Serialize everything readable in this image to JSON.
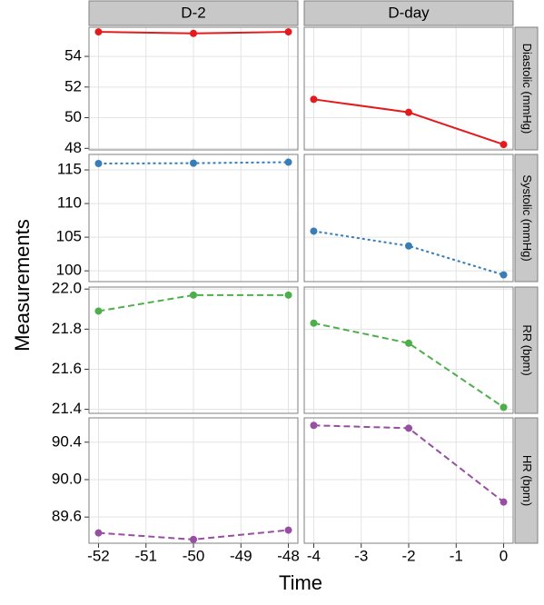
{
  "chart_data": {
    "type": "line",
    "x_label": "Time",
    "y_label": "Measurements",
    "grid": true,
    "facets": [
      {
        "name": "D-2",
        "x": [
          -52,
          -50,
          -48
        ],
        "xlim": [
          -52.2,
          -47.8
        ],
        "xticks": [
          -52,
          -51,
          -50,
          -49,
          -48
        ]
      },
      {
        "name": "D-day",
        "x": [
          -4,
          -2,
          0
        ],
        "xlim": [
          -4.2,
          0.2
        ],
        "xticks": [
          -4,
          -3,
          -2,
          -1,
          0
        ]
      }
    ],
    "series": [
      {
        "name": "Diastolic (mmHg)",
        "color": "#e41a1c",
        "line_style": "solid",
        "ylim": [
          47.9,
          55.9
        ],
        "yticks": [
          48,
          50,
          52,
          54
        ],
        "values": [
          [
            55.6,
            55.5,
            55.6
          ],
          [
            51.2,
            50.35,
            48.25
          ]
        ]
      },
      {
        "name": "Systolic (mmHg)",
        "color": "#377eb8",
        "line_style": "dotted",
        "ylim": [
          98.4,
          117.3
        ],
        "yticks": [
          100,
          105,
          110,
          115
        ],
        "values": [
          [
            115.95,
            116.0,
            116.15
          ],
          [
            105.9,
            103.7,
            99.4
          ]
        ]
      },
      {
        "name": "RR (bpm)",
        "color": "#4daf4a",
        "line_style": "dashed",
        "ylim": [
          21.38,
          22.01
        ],
        "yticks": [
          21.4,
          21.6,
          21.8,
          {
            "value": 22,
            "label": "22.0"
          }
        ],
        "values": [
          [
            21.89,
            21.97,
            21.97
          ],
          [
            21.83,
            21.73,
            21.41
          ]
        ]
      },
      {
        "name": "HR (bpm)",
        "color": "#984ea3",
        "line_style": "dashed",
        "ylim": [
          89.32,
          90.66
        ],
        "yticks": [
          89.6,
          {
            "value": 90,
            "label": "90.0"
          },
          90.4
        ],
        "values": [
          [
            89.43,
            89.36,
            89.46
          ],
          [
            90.58,
            90.55,
            89.76
          ]
        ]
      }
    ]
  }
}
